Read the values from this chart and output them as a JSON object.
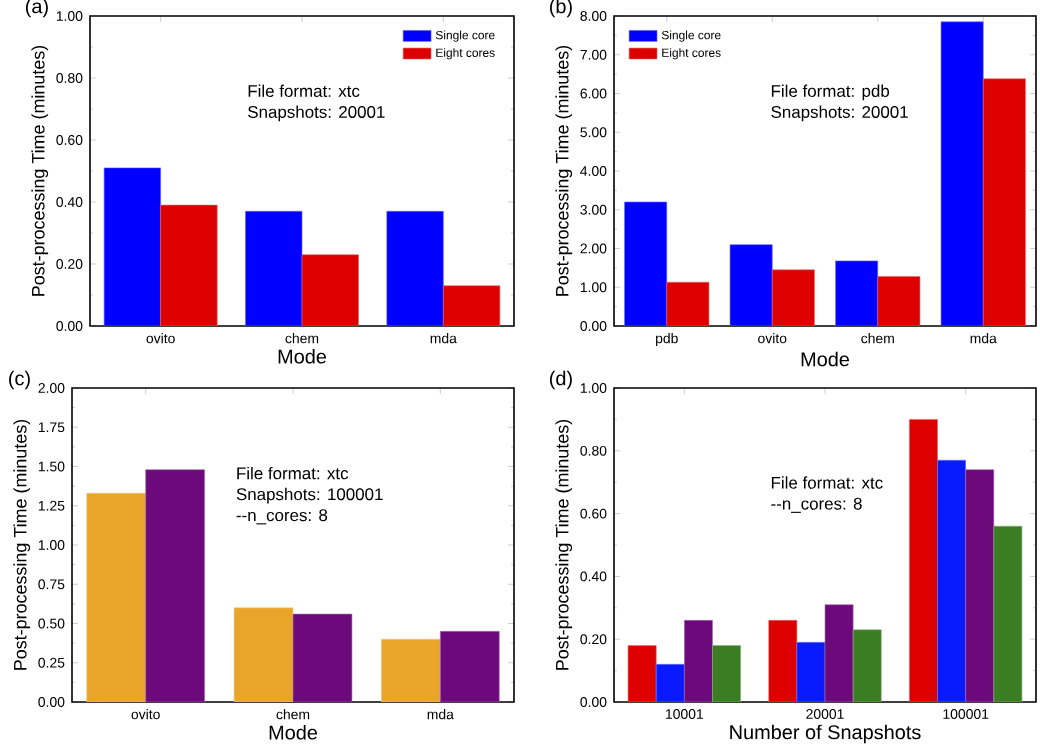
{
  "chart_data": [
    {
      "type": "bar",
      "title": "(a)",
      "xlabel": "Mode",
      "ylabel": "Post-processing Time (minutes)",
      "categories": [
        "ovito",
        "chem",
        "mda"
      ],
      "series": [
        {
          "name": "Single core",
          "color": "#0000ff",
          "values": [
            0.51,
            0.37,
            0.37
          ]
        },
        {
          "name": "Eight cores",
          "color": "#dd0000",
          "values": [
            0.39,
            0.23,
            0.13
          ]
        }
      ],
      "ylim": [
        0,
        1
      ],
      "yticks": [
        {
          "value": 0,
          "label": "0.00"
        },
        {
          "value": 0.2,
          "label": "0.20"
        },
        {
          "value": 0.4,
          "label": "0.40"
        },
        {
          "value": 0.6,
          "label": "0.60"
        },
        {
          "value": 0.8,
          "label": "0.80"
        },
        {
          "value": 1,
          "label": "1.00"
        }
      ],
      "legend": "top right",
      "annotations": [
        "File format: xtc",
        "Snapshots: 20001"
      ]
    },
    {
      "type": "bar",
      "title": "(b)",
      "xlabel": "Mode",
      "ylabel": "Post-processing Time (minutes)",
      "categories": [
        "pdb",
        "ovito",
        "chem",
        "mda"
      ],
      "series": [
        {
          "name": "Single core",
          "color": "#0000ff",
          "values": [
            3.2,
            2.1,
            1.68,
            7.85
          ]
        },
        {
          "name": "Eight cores",
          "color": "#dd0000",
          "values": [
            1.13,
            1.45,
            1.28,
            6.38
          ]
        }
      ],
      "ylim": [
        0,
        8
      ],
      "yticks": [
        {
          "value": 0,
          "label": "0.00"
        },
        {
          "value": 1,
          "label": "1.00"
        },
        {
          "value": 2,
          "label": "2.00"
        },
        {
          "value": 3,
          "label": "3.00"
        },
        {
          "value": 4,
          "label": "4.00"
        },
        {
          "value": 5,
          "label": "5.00"
        },
        {
          "value": 6,
          "label": "6.00"
        },
        {
          "value": 7,
          "label": "7.00"
        },
        {
          "value": 8,
          "label": "8.00"
        }
      ],
      "legend": "top left",
      "annotations": [
        "File format: pdb",
        "Snapshots: 20001"
      ]
    },
    {
      "type": "bar",
      "title": "(c)",
      "xlabel": "Mode",
      "ylabel": "Post-processing Time (minutes)",
      "categories": [
        "ovito",
        "chem",
        "mda"
      ],
      "series": [
        {
          "color": "#e8a52a",
          "values": [
            1.33,
            0.6,
            0.4
          ]
        },
        {
          "color": "#6c0a7c",
          "values": [
            1.48,
            0.56,
            0.45
          ]
        }
      ],
      "ylim": [
        0,
        2
      ],
      "yticks": [
        {
          "value": 0,
          "label": "0.00"
        },
        {
          "value": 0.25,
          "label": "0.25"
        },
        {
          "value": 0.5,
          "label": "0.50"
        },
        {
          "value": 0.75,
          "label": "0.75"
        },
        {
          "value": 1,
          "label": "1.00"
        },
        {
          "value": 1.25,
          "label": "1.25"
        },
        {
          "value": 1.5,
          "label": "1.50"
        },
        {
          "value": 1.75,
          "label": "1.75"
        },
        {
          "value": 2,
          "label": "2.00"
        }
      ],
      "annotations": [
        "File format: xtc",
        "Snapshots: 100001",
        "--n_cores: 8"
      ]
    },
    {
      "type": "bar",
      "title": "(d)",
      "xlabel": "Number of Snapshots",
      "ylabel": "Post-processing Time (minutes)",
      "categories": [
        "10001",
        "20001",
        "100001"
      ],
      "series": [
        {
          "color": "#dd0000",
          "values": [
            0.18,
            0.26,
            0.9
          ]
        },
        {
          "color": "#0a1aff",
          "values": [
            0.12,
            0.19,
            0.77
          ]
        },
        {
          "color": "#6c0a7c",
          "values": [
            0.26,
            0.31,
            0.74
          ]
        },
        {
          "color": "#3b7d23",
          "values": [
            0.18,
            0.23,
            0.56
          ]
        }
      ],
      "ylim": [
        0,
        1
      ],
      "yticks": [
        {
          "value": 0,
          "label": "0.00"
        },
        {
          "value": 0.2,
          "label": "0.20"
        },
        {
          "value": 0.4,
          "label": "0.40"
        },
        {
          "value": 0.6,
          "label": "0.60"
        },
        {
          "value": 0.8,
          "label": "0.80"
        },
        {
          "value": 1,
          "label": "1.00"
        }
      ],
      "annotations": [
        "File format: xtc",
        "--n_cores: 8"
      ]
    }
  ]
}
